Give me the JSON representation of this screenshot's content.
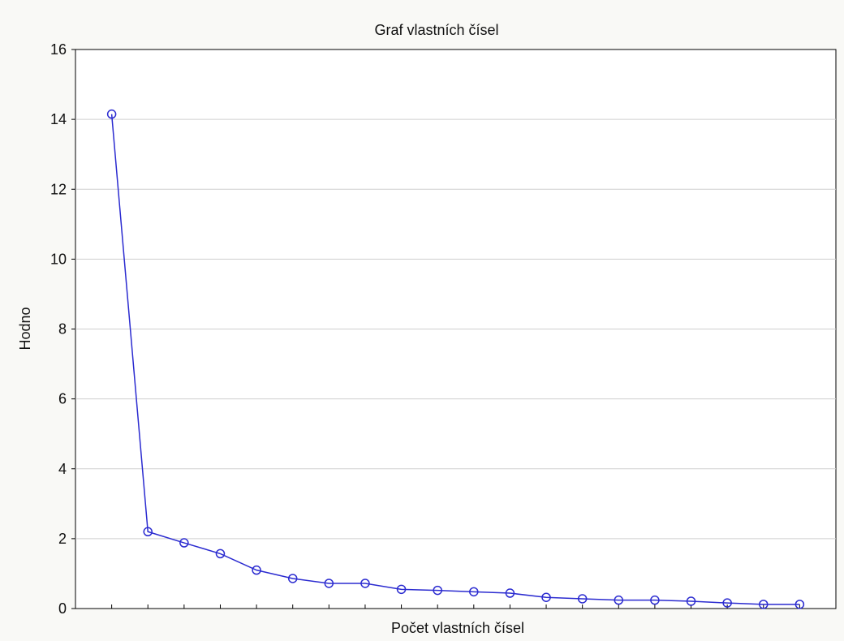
{
  "chart_data": {
    "type": "line",
    "title": "Graf vlastních čísel",
    "xlabel": "Počet vlastních čísel",
    "ylabel": "Hodno",
    "x": [
      1,
      2,
      3,
      4,
      5,
      6,
      7,
      8,
      9,
      10,
      11,
      12,
      13,
      14,
      15,
      16,
      17,
      18,
      19,
      20
    ],
    "values": [
      14.15,
      2.2,
      1.88,
      1.57,
      1.1,
      0.86,
      0.72,
      0.72,
      0.55,
      0.52,
      0.48,
      0.44,
      0.32,
      0.28,
      0.24,
      0.24,
      0.21,
      0.16,
      0.12,
      0.12
    ],
    "ylim": [
      0,
      16
    ],
    "yticks": [
      0,
      2,
      4,
      6,
      8,
      10,
      12,
      14,
      16
    ],
    "xlim": [
      0,
      21
    ],
    "grid": true,
    "colors": {
      "line": "#2b2bd0",
      "marker": "#2b2bd0",
      "grid": "#cfcfcf",
      "axis": "#000000",
      "plot_bg": "#ffffff",
      "page_bg": "#f9f9f6"
    }
  }
}
